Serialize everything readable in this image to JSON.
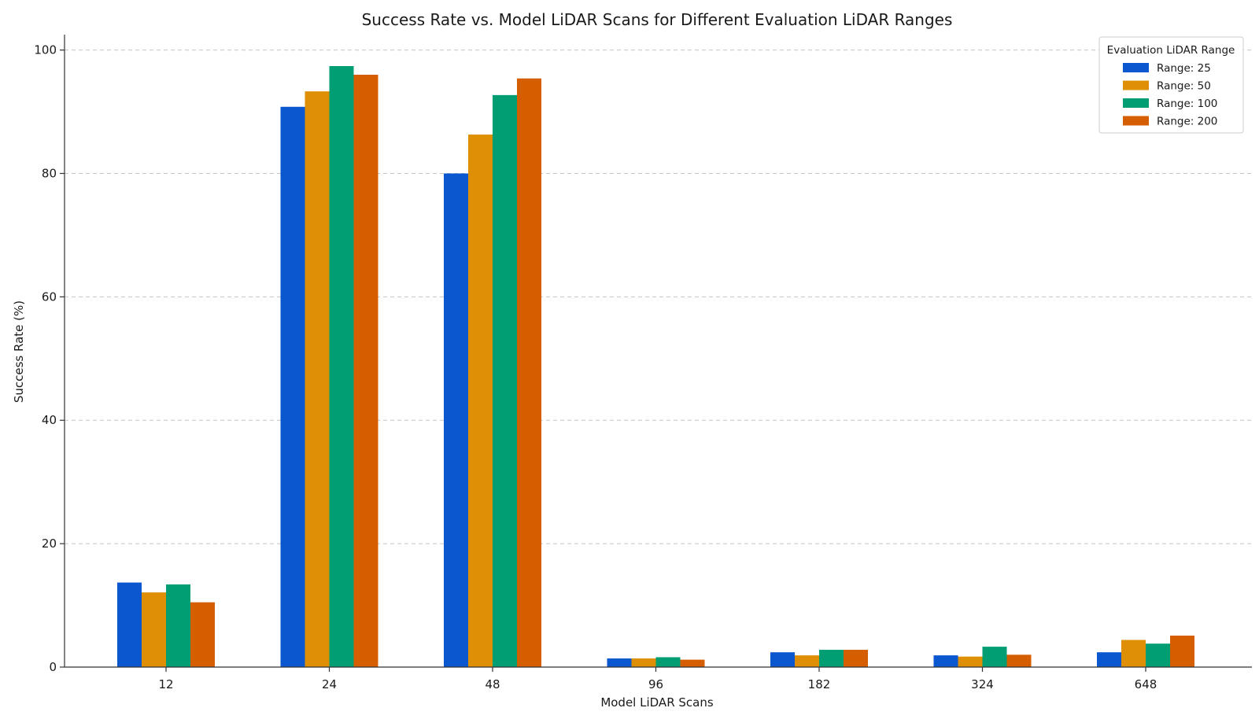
{
  "chart_data": {
    "type": "bar",
    "title": "Success Rate vs. Model LiDAR Scans for Different Evaluation LiDAR Ranges",
    "xlabel": "Model LiDAR Scans",
    "ylabel": "Success Rate (%)",
    "categories": [
      "12",
      "24",
      "48",
      "96",
      "182",
      "324",
      "648"
    ],
    "ylim": [
      0,
      102.5
    ],
    "yticks": [
      0,
      20,
      40,
      60,
      80,
      100
    ],
    "grid": "y-dashed",
    "legend": {
      "title": "Evaluation LiDAR Range",
      "placement": "top-right"
    },
    "series": [
      {
        "name": "Range: 25",
        "color": "#0b57d0",
        "values": [
          13.7,
          90.8,
          80.0,
          1.4,
          2.4,
          1.9,
          2.4
        ]
      },
      {
        "name": "Range: 50",
        "color": "#de8f05",
        "values": [
          12.1,
          93.3,
          86.3,
          1.4,
          1.9,
          1.7,
          4.4
        ]
      },
      {
        "name": "Range: 100",
        "color": "#029e73",
        "values": [
          13.4,
          97.4,
          92.7,
          1.6,
          2.8,
          3.3,
          3.8
        ]
      },
      {
        "name": "Range: 200",
        "color": "#d55e00",
        "values": [
          10.5,
          96.0,
          95.4,
          1.2,
          2.8,
          2.0,
          5.1
        ]
      }
    ]
  }
}
